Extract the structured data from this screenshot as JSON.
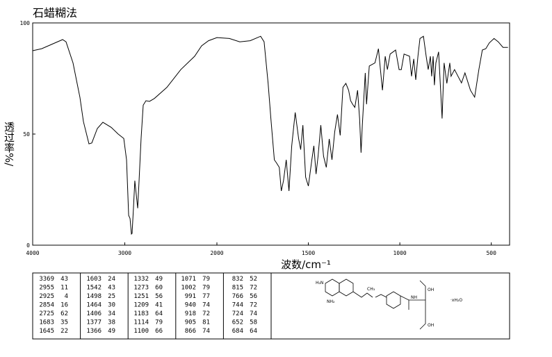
{
  "chart_data": {
    "type": "line",
    "title": "石蜡糊法",
    "x_label": "波数/cm⁻¹",
    "y_label": "透过率%/",
    "x": [
      4000,
      3902,
      3675,
      3638,
      3562,
      3487,
      3449,
      3389,
      3358,
      3298,
      3238,
      3147,
      3072,
      3011,
      2981,
      2958,
      2943,
      2928,
      2921,
      2906,
      2891,
      2876,
      2860,
      2845,
      2823,
      2800,
      2770,
      2732,
      2679,
      2543,
      2392,
      2242,
      2166,
      2091,
      2000,
      1932,
      1875,
      1818,
      1761,
      1742,
      1720,
      1705,
      1686,
      1674,
      1659,
      1648,
      1636,
      1621,
      1606,
      1591,
      1572,
      1553,
      1542,
      1530,
      1515,
      1500,
      1481,
      1470,
      1458,
      1447,
      1432,
      1417,
      1402,
      1386,
      1371,
      1356,
      1341,
      1326,
      1311,
      1295,
      1280,
      1269,
      1258,
      1246,
      1231,
      1220,
      1212,
      1205,
      1189,
      1182,
      1167,
      1136,
      1117,
      1106,
      1095,
      1080,
      1068,
      1053,
      1023,
      1004,
      992,
      977,
      947,
      936,
      924,
      913,
      901,
      890,
      871,
      856,
      845,
      833,
      826,
      818,
      811,
      803,
      788,
      769,
      758,
      743,
      727,
      720,
      701,
      682,
      663,
      644,
      614,
      591,
      568,
      549,
      530,
      511,
      485,
      462,
      436,
      409
    ],
    "values": [
      87.5,
      88.4,
      92.5,
      91.5,
      82,
      66.5,
      55.6,
      45.6,
      46,
      52.5,
      55.3,
      53,
      50,
      48,
      38.4,
      13.4,
      12,
      5,
      5.3,
      16.6,
      29,
      23,
      16.6,
      29,
      48,
      63,
      65,
      64.7,
      66,
      71,
      79,
      85,
      89.7,
      92,
      93.4,
      93,
      91.5,
      92,
      94,
      91.5,
      72.8,
      57,
      38.4,
      37,
      35,
      24.4,
      29,
      38.4,
      24.4,
      44.7,
      59.7,
      47.8,
      43,
      54,
      30.6,
      26.6,
      38.4,
      44.7,
      32,
      40,
      54,
      40,
      35,
      47.8,
      38.4,
      51,
      58.8,
      49.4,
      71,
      72.8,
      69.7,
      65,
      63.4,
      62,
      69.7,
      57,
      41.6,
      54,
      77.5,
      63.4,
      80.6,
      82,
      88.4,
      79,
      69.7,
      85,
      79,
      86,
      87.8,
      79,
      79,
      86,
      85,
      76,
      83.8,
      74.4,
      85,
      93,
      94,
      85,
      79,
      85,
      76,
      85,
      72,
      82,
      87,
      57,
      82,
      72.8,
      82,
      76,
      79,
      76,
      73,
      77.5,
      69.7,
      66.6,
      79,
      87.8,
      88.4,
      91,
      93,
      91.5,
      89,
      89
    ],
    "color": "#000000",
    "xlim": [
      4000,
      400
    ],
    "x_scale_break": 2000,
    "xticks": [
      4000,
      3000,
      2000,
      1500,
      1000,
      500
    ],
    "ylim": [
      0,
      100
    ],
    "yticks": [
      0,
      50,
      100
    ],
    "grid": false
  },
  "peak_table": {
    "columns": [
      [
        [
          3369,
          43
        ],
        [
          2955,
          11
        ],
        [
          2925,
          4
        ],
        [
          2854,
          16
        ],
        [
          2725,
          62
        ],
        [
          1683,
          35
        ],
        [
          1645,
          22
        ]
      ],
      [
        [
          1603,
          24
        ],
        [
          1542,
          43
        ],
        [
          1498,
          25
        ],
        [
          1464,
          30
        ],
        [
          1406,
          34
        ],
        [
          1377,
          38
        ],
        [
          1366,
          49
        ]
      ],
      [
        [
          1332,
          49
        ],
        [
          1273,
          60
        ],
        [
          1251,
          56
        ],
        [
          1209,
          41
        ],
        [
          1183,
          64
        ],
        [
          1114,
          79
        ],
        [
          1100,
          66
        ]
      ],
      [
        [
          1071,
          79
        ],
        [
          1002,
          79
        ],
        [
          991,
          77
        ],
        [
          940,
          74
        ],
        [
          918,
          72
        ],
        [
          905,
          81
        ],
        [
          866,
          74
        ]
      ],
      [
        [
          832,
          52
        ],
        [
          815,
          72
        ],
        [
          766,
          56
        ],
        [
          744,
          72
        ],
        [
          724,
          74
        ],
        [
          652,
          58
        ],
        [
          684,
          64
        ]
      ]
    ]
  },
  "structure": {
    "labels": [
      "H₂N",
      "NH₂",
      "CH₃",
      "NH",
      "OH",
      "OH",
      "·xH₂O"
    ]
  }
}
